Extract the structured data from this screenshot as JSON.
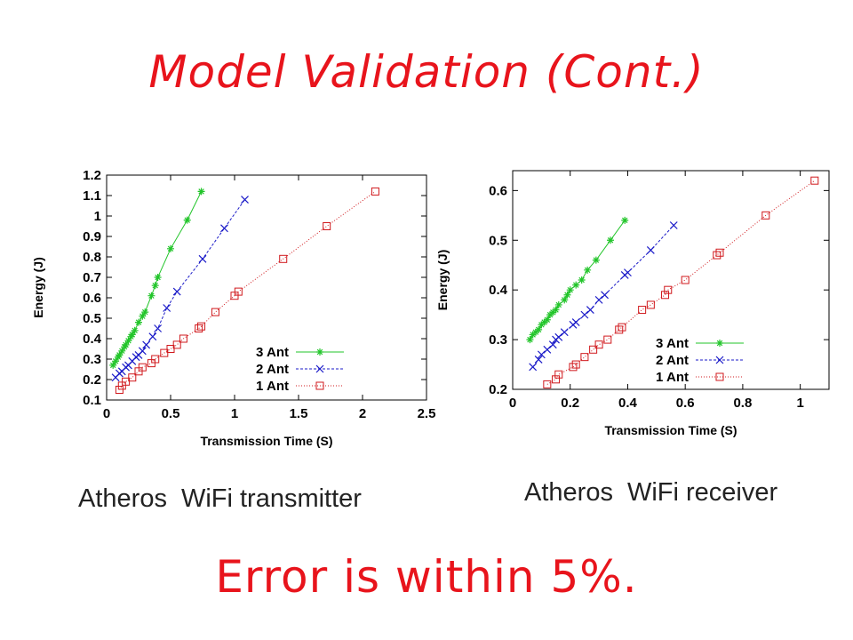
{
  "slide": {
    "title": "Model Validation (Cont.)",
    "caption_tx": [
      "Atheros",
      "WiFi transmitter"
    ],
    "caption_rx": [
      "Atheros",
      "WiFi receiver"
    ],
    "note": "Error is within 5%."
  },
  "colors": {
    "title": "#e8141c",
    "green": "#22c52a",
    "blue": "#1a1ac8",
    "red": "#d0181c"
  },
  "chart_data": [
    {
      "id": "chart-tx",
      "type": "line",
      "xlabel": "Transmission Time (S)",
      "ylabel": "Energy (J)",
      "xlim": [
        0,
        2.5
      ],
      "ylim": [
        0.1,
        1.2
      ],
      "xticks": [
        "0",
        "0.5",
        "1",
        "1.5",
        "2",
        "2.5"
      ],
      "xtick_values": [
        0,
        0.5,
        1,
        1.5,
        2,
        2.5
      ],
      "yticks": [
        "0.1",
        "0.2",
        "0.3",
        "0.4",
        "0.5",
        "0.6",
        "0.7",
        "0.8",
        "0.9",
        "1",
        "1.1",
        "1.2"
      ],
      "ytick_values": [
        0.1,
        0.2,
        0.3,
        0.4,
        0.5,
        0.6,
        0.7,
        0.8,
        0.9,
        1.0,
        1.1,
        1.2
      ],
      "grid": false,
      "legend_position": "bottom-right",
      "series": [
        {
          "name": "3 Ant",
          "color": "#22c52a",
          "marker": "star",
          "dash": "",
          "x": [
            0.05,
            0.07,
            0.09,
            0.1,
            0.12,
            0.14,
            0.15,
            0.17,
            0.19,
            0.2,
            0.22,
            0.25,
            0.28,
            0.3,
            0.35,
            0.38,
            0.4,
            0.5,
            0.63,
            0.74
          ],
          "y": [
            0.27,
            0.29,
            0.31,
            0.32,
            0.34,
            0.36,
            0.37,
            0.39,
            0.41,
            0.42,
            0.44,
            0.48,
            0.51,
            0.53,
            0.61,
            0.66,
            0.7,
            0.84,
            0.98,
            1.12
          ]
        },
        {
          "name": "2 Ant",
          "color": "#1a1ac8",
          "marker": "x",
          "dash": "3,2",
          "x": [
            0.07,
            0.1,
            0.12,
            0.15,
            0.17,
            0.2,
            0.23,
            0.25,
            0.28,
            0.31,
            0.36,
            0.4,
            0.47,
            0.55,
            0.75,
            0.92,
            1.08
          ],
          "y": [
            0.21,
            0.23,
            0.24,
            0.26,
            0.27,
            0.29,
            0.31,
            0.32,
            0.34,
            0.37,
            0.41,
            0.45,
            0.55,
            0.63,
            0.79,
            0.94,
            1.08
          ]
        },
        {
          "name": "1 Ant",
          "color": "#d0181c",
          "marker": "square",
          "dash": "1,2",
          "x": [
            0.1,
            0.12,
            0.15,
            0.2,
            0.25,
            0.28,
            0.35,
            0.38,
            0.45,
            0.5,
            0.55,
            0.6,
            0.72,
            0.74,
            0.85,
            1.0,
            1.03,
            1.38,
            1.72,
            2.1
          ],
          "y": [
            0.15,
            0.17,
            0.19,
            0.21,
            0.24,
            0.26,
            0.28,
            0.3,
            0.33,
            0.35,
            0.37,
            0.4,
            0.45,
            0.46,
            0.53,
            0.61,
            0.63,
            0.79,
            0.95,
            1.12
          ]
        }
      ]
    },
    {
      "id": "chart-rx",
      "type": "line",
      "xlabel": "Transmission Time (S)",
      "ylabel": "Energy (J)",
      "xlim": [
        0,
        1.1
      ],
      "ylim": [
        0.2,
        0.64
      ],
      "xticks": [
        "0",
        "0.2",
        "0.4",
        "0.6",
        "0.8",
        "1"
      ],
      "xtick_values": [
        0,
        0.2,
        0.4,
        0.6,
        0.8,
        1.0
      ],
      "yticks": [
        "0.2",
        "0.3",
        "0.4",
        "0.5",
        "0.6"
      ],
      "ytick_values": [
        0.2,
        0.3,
        0.4,
        0.5,
        0.6
      ],
      "grid": false,
      "legend_position": "bottom-right",
      "series": [
        {
          "name": "3 Ant",
          "color": "#22c52a",
          "marker": "star",
          "dash": "",
          "x": [
            0.06,
            0.07,
            0.08,
            0.09,
            0.1,
            0.11,
            0.12,
            0.13,
            0.14,
            0.15,
            0.16,
            0.18,
            0.19,
            0.2,
            0.22,
            0.24,
            0.26,
            0.29,
            0.34,
            0.39
          ],
          "y": [
            0.3,
            0.31,
            0.315,
            0.32,
            0.33,
            0.335,
            0.34,
            0.35,
            0.355,
            0.36,
            0.37,
            0.38,
            0.39,
            0.4,
            0.41,
            0.42,
            0.44,
            0.46,
            0.5,
            0.54
          ]
        },
        {
          "name": "2 Ant",
          "color": "#1a1ac8",
          "marker": "x",
          "dash": "3,2",
          "x": [
            0.07,
            0.09,
            0.1,
            0.12,
            0.14,
            0.15,
            0.16,
            0.18,
            0.21,
            0.22,
            0.25,
            0.27,
            0.3,
            0.32,
            0.39,
            0.4,
            0.48,
            0.56
          ],
          "y": [
            0.245,
            0.26,
            0.27,
            0.28,
            0.29,
            0.3,
            0.305,
            0.315,
            0.33,
            0.335,
            0.35,
            0.36,
            0.38,
            0.39,
            0.43,
            0.435,
            0.48,
            0.53
          ]
        },
        {
          "name": "1 Ant",
          "color": "#d0181c",
          "marker": "square",
          "dash": "1,2",
          "x": [
            0.12,
            0.15,
            0.16,
            0.21,
            0.22,
            0.25,
            0.28,
            0.3,
            0.33,
            0.37,
            0.38,
            0.45,
            0.48,
            0.53,
            0.54,
            0.6,
            0.71,
            0.72,
            0.88,
            1.05
          ],
          "y": [
            0.21,
            0.22,
            0.23,
            0.245,
            0.25,
            0.265,
            0.28,
            0.29,
            0.3,
            0.32,
            0.325,
            0.36,
            0.37,
            0.39,
            0.4,
            0.42,
            0.47,
            0.475,
            0.55,
            0.62
          ]
        }
      ]
    }
  ]
}
